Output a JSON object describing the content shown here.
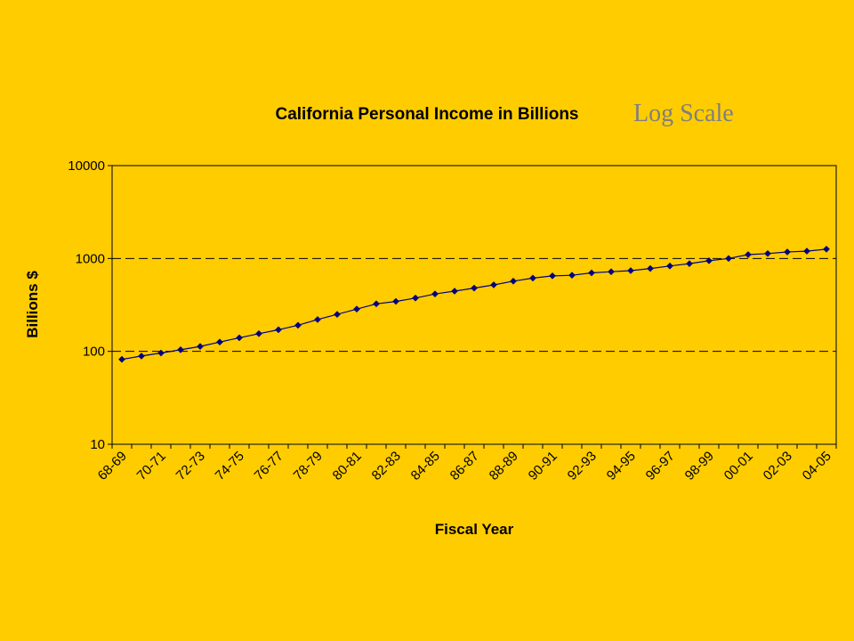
{
  "colors": {
    "background": "#FFCC00",
    "series": "#000080",
    "subtitle": "#7F7F7F",
    "axis": "#000000"
  },
  "chart_data": {
    "type": "line",
    "title": "California Personal Income in Billions",
    "subtitle": "Log Scale",
    "xlabel": "Fiscal Year",
    "ylabel": "Billions $",
    "yscale": "log",
    "ylim": [
      10,
      10000
    ],
    "yticks": [
      "10",
      "100",
      "1000",
      "10000"
    ],
    "grid": "dashed horizontal at 100 and 1000",
    "legend": "none",
    "x": [
      "68-69",
      "69-70",
      "70-71",
      "71-72",
      "72-73",
      "73-74",
      "74-75",
      "75-76",
      "76-77",
      "77-78",
      "78-79",
      "79-80",
      "80-81",
      "81-82",
      "82-83",
      "83-84",
      "84-85",
      "85-86",
      "86-87",
      "87-88",
      "88-89",
      "89-90",
      "90-91",
      "91-92",
      "92-93",
      "93-94",
      "94-95",
      "95-96",
      "96-97",
      "97-98",
      "98-99",
      "99-00",
      "00-01",
      "01-02",
      "02-03",
      "03-04",
      "04-05"
    ],
    "xtick_labels": [
      "68-69",
      "70-71",
      "72-73",
      "74-75",
      "76-77",
      "78-79",
      "80-81",
      "82-83",
      "84-85",
      "86-87",
      "88-89",
      "90-91",
      "92-93",
      "94-95",
      "96-97",
      "98-99",
      "00-01",
      "02-03",
      "04-05"
    ],
    "series": [
      {
        "values": [
          82,
          89,
          96,
          104,
          113,
          126,
          140,
          155,
          171,
          191,
          220,
          250,
          285,
          325,
          345,
          375,
          415,
          445,
          480,
          520,
          570,
          615,
          650,
          660,
          700,
          720,
          740,
          780,
          830,
          880,
          945,
          1000,
          1100,
          1130,
          1175,
          1200,
          1260
        ]
      }
    ]
  }
}
